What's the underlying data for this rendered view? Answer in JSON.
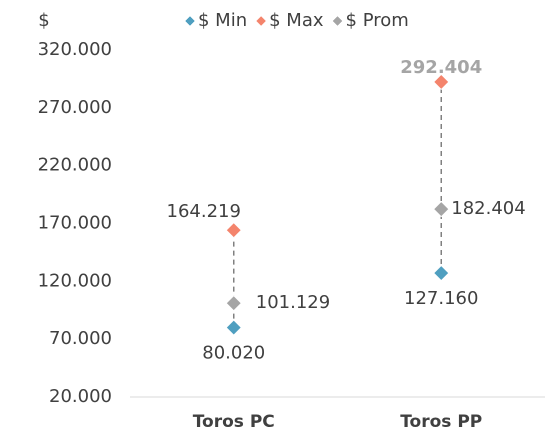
{
  "chart_data": {
    "type": "high-low",
    "y_axis_label": "$",
    "categories": [
      "Toros PC",
      "Toros PP"
    ],
    "series": [
      {
        "name": "$ Min",
        "color": "#4f9fc0",
        "values": [
          80020,
          127160
        ],
        "value_labels": [
          "80.020",
          "127.160"
        ]
      },
      {
        "name": "$ Max",
        "color": "#f4846c",
        "values": [
          164219,
          292404
        ],
        "value_labels": [
          "164.219",
          "292.404"
        ]
      },
      {
        "name": "$ Prom",
        "color": "#a5a5a5",
        "values": [
          101129,
          182404
        ],
        "value_labels": [
          "101.129",
          "182.404"
        ]
      }
    ],
    "ylim": [
      20000,
      320000
    ],
    "yticks": [
      {
        "value": 20000,
        "label": "20.000"
      },
      {
        "value": 70000,
        "label": "70.000"
      },
      {
        "value": 120000,
        "label": "120.000"
      },
      {
        "value": 170000,
        "label": "170.000"
      },
      {
        "value": 220000,
        "label": "220.000"
      },
      {
        "value": 270000,
        "label": "270.000"
      },
      {
        "value": 320000,
        "label": "320.000"
      }
    ],
    "grid": false,
    "legend": "top"
  }
}
